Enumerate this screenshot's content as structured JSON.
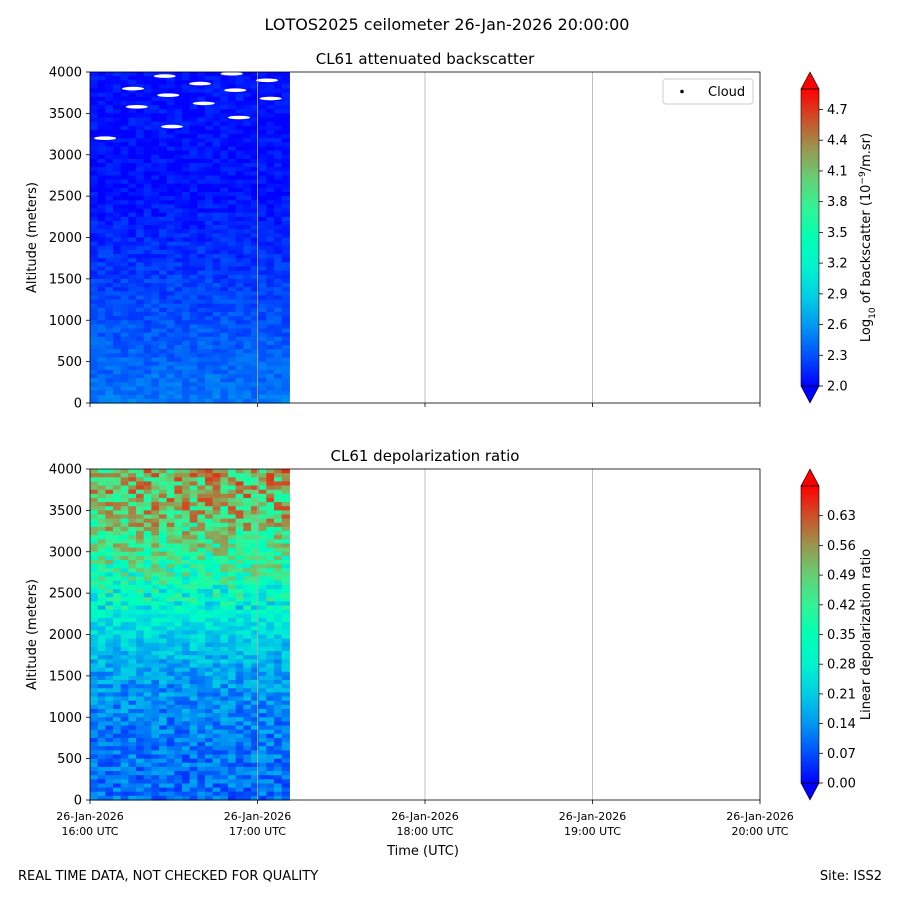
{
  "figure": {
    "suptitle": "LOTOS2025 ceilometer 26-Jan-2026 20:00:00",
    "footer_left": "REAL TIME DATA, NOT CHECKED FOR QUALITY",
    "footer_right": "Site: ISS2"
  },
  "colors": {
    "background": "#ffffff",
    "grid": "#b0b0b0",
    "axis": "#000000"
  },
  "chart_data": [
    {
      "type": "heatmap",
      "title": "CL61 attenuated backscatter",
      "ylabel": "Altitude (meters)",
      "xlabel": "",
      "ylim": [
        0,
        4000
      ],
      "yticks": [
        0,
        500,
        1000,
        1500,
        2000,
        2500,
        3000,
        3500,
        4000
      ],
      "x_range_hours": [
        16.0,
        20.0
      ],
      "data_extent_hours": [
        16.0,
        17.19
      ],
      "show_xticklabels": false,
      "legend": {
        "entries": [
          "Cloud"
        ],
        "placement": "top-right"
      },
      "colorbar": {
        "label": "Log10 of backscatter (10^-9/m.sr)",
        "label_parts": [
          "Log",
          "10",
          " of backscatter (10",
          "−9",
          "/m.sr)"
        ],
        "range": [
          2.0,
          4.9
        ],
        "ticks": [
          "2.0",
          "2.3",
          "2.6",
          "2.9",
          "3.2",
          "3.5",
          "3.8",
          "4.1",
          "4.4",
          "4.7"
        ],
        "extend": "both"
      },
      "profile": {
        "description": "low values (≈2.0–2.4) throughout; highest near surface",
        "near_surface_value": 2.45,
        "upper_value": 2.05
      },
      "cloud_altitudes": [
        3200,
        3340,
        3450,
        3580,
        3620,
        3680,
        3720,
        3780,
        3800,
        3860,
        3900,
        3950,
        3980
      ]
    },
    {
      "type": "heatmap",
      "title": "CL61 depolarization ratio",
      "ylabel": "Altitude (meters)",
      "xlabel": "Time (UTC)",
      "ylim": [
        0,
        4000
      ],
      "yticks": [
        0,
        500,
        1000,
        1500,
        2000,
        2500,
        3000,
        3500,
        4000
      ],
      "x_range_hours": [
        16.0,
        20.0
      ],
      "data_extent_hours": [
        16.0,
        17.19
      ],
      "show_xticklabels": true,
      "colorbar": {
        "label": "Linear depolarization ratio",
        "range": [
          0.0,
          0.7
        ],
        "ticks": [
          "0.00",
          "0.07",
          "0.14",
          "0.21",
          "0.28",
          "0.35",
          "0.42",
          "0.49",
          "0.56",
          "0.63"
        ],
        "extend": "both"
      },
      "profile": {
        "description": "≈0.1 near surface rising to ≈0.4–0.7 above 2500 m",
        "altitudes": [
          0,
          500,
          1000,
          1500,
          2000,
          2500,
          3000,
          3500,
          4000
        ],
        "values": [
          0.1,
          0.11,
          0.12,
          0.15,
          0.22,
          0.33,
          0.42,
          0.5,
          0.52
        ]
      }
    }
  ],
  "xticks": [
    {
      "date": "26-Jan-2026",
      "time": "16:00 UTC"
    },
    {
      "date": "26-Jan-2026",
      "time": "17:00 UTC"
    },
    {
      "date": "26-Jan-2026",
      "time": "18:00 UTC"
    },
    {
      "date": "26-Jan-2026",
      "time": "19:00 UTC"
    },
    {
      "date": "26-Jan-2026",
      "time": "20:00 UTC"
    }
  ]
}
